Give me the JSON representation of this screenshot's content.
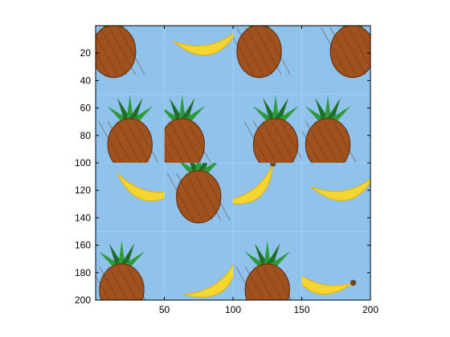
{
  "chart_data": {
    "type": "heatmap",
    "title": "",
    "xlabel": "",
    "ylabel": "",
    "xlim": [
      0,
      200
    ],
    "ylim": [
      0,
      200
    ],
    "y_reversed": true,
    "grid": false,
    "x_ticks": [
      50,
      100,
      150,
      200
    ],
    "y_ticks": [
      20,
      40,
      60,
      80,
      100,
      120,
      140,
      160,
      180,
      200
    ],
    "image_size": [
      200,
      200
    ],
    "tile_grid": [
      4,
      4
    ],
    "tiles": [
      [
        "pineapple",
        "banana",
        "pineapple",
        "pineapple"
      ],
      [
        "pineapple",
        "pineapple",
        "pineapple",
        "pineapple"
      ],
      [
        "banana",
        "pineapple",
        "banana",
        "banana"
      ],
      [
        "pineapple",
        "banana",
        "pineapple",
        "banana"
      ]
    ]
  },
  "colors": {
    "background": "#8fc3ec",
    "banana": "#f5d631",
    "banana_shade": "#e0b21c",
    "pineapple": "#a0521e",
    "pineapple_dark": "#6b3210",
    "leaf": "#2f9a3a",
    "leaf_dark": "#1f6e28",
    "stem": "#6b4420"
  }
}
